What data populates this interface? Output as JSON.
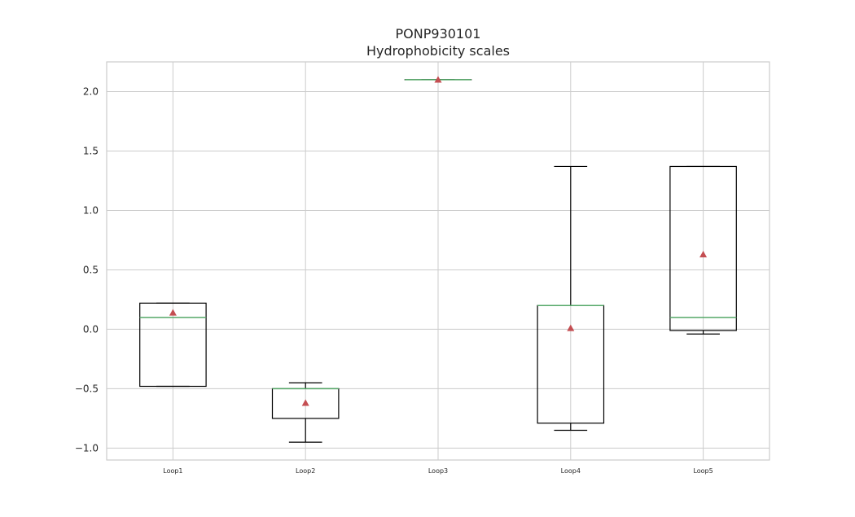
{
  "chart_data": {
    "type": "box",
    "title": "PONP930101",
    "subtitle": "Hydrophobicity scales",
    "xlabel": "",
    "ylabel": "",
    "ylim": [
      -1.1,
      2.25
    ],
    "yticks": [
      -1.0,
      -0.5,
      0.0,
      0.5,
      1.0,
      1.5,
      2.0
    ],
    "ytick_labels": [
      "−1.0",
      "−0.5",
      "0.0",
      "0.5",
      "1.0",
      "1.5",
      "2.0"
    ],
    "grid": true,
    "categories": [
      "Loop1",
      "Loop2",
      "Loop3",
      "Loop4",
      "Loop5"
    ],
    "boxes": [
      {
        "whisker_low": -0.48,
        "q1": -0.48,
        "median": 0.1,
        "q3": 0.22,
        "whisker_high": 0.22,
        "mean": 0.14
      },
      {
        "whisker_low": -0.95,
        "q1": -0.75,
        "median": -0.5,
        "q3": -0.5,
        "whisker_high": -0.45,
        "mean": -0.62
      },
      {
        "whisker_low": 2.1,
        "q1": 2.1,
        "median": 2.1,
        "q3": 2.1,
        "whisker_high": 2.1,
        "mean": 2.1
      },
      {
        "whisker_low": -0.85,
        "q1": -0.79,
        "median": 0.2,
        "q3": 0.2,
        "whisker_high": 1.37,
        "mean": 0.01
      },
      {
        "whisker_low": -0.04,
        "q1": -0.01,
        "median": 0.1,
        "q3": 1.37,
        "whisker_high": 1.37,
        "mean": 0.63
      }
    ],
    "colors": {
      "box": "#000000",
      "median": "#55a868",
      "mean": "#c44e52",
      "grid": "#cccccc",
      "frame": "#cccccc"
    }
  }
}
